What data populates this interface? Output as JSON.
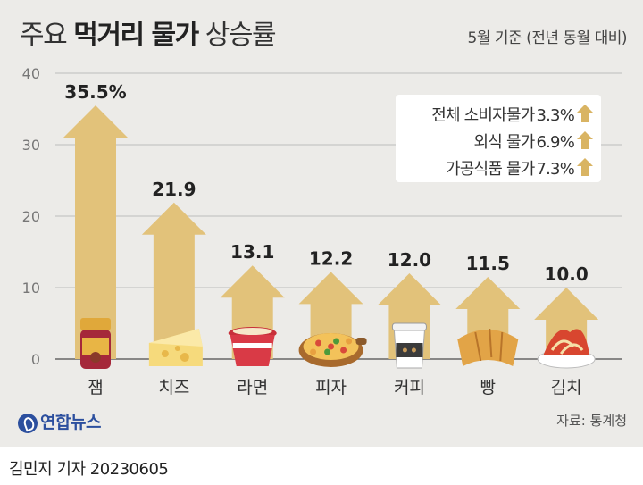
{
  "title": {
    "normal": "주요",
    "bold": "먹거리 물가",
    "suffix": "상승률"
  },
  "subtitle": "5월 기준 (전년 동월 대비)",
  "legend": [
    {
      "label": "전체 소비자물가",
      "value": "3.3%"
    },
    {
      "label": "외식 물가",
      "value": "6.9%"
    },
    {
      "label": "가공식품 물가",
      "value": "7.3%"
    }
  ],
  "source": "자료: 통계청",
  "logo": "연합뉴스",
  "credit": "김민지 기자  20230605",
  "colors": {
    "arrow": "#e2c27a",
    "panel": "#ecebe8",
    "legend_arrow": "#d9b463",
    "axis": "#888888"
  },
  "chart_data": {
    "type": "bar",
    "categories": [
      "잼",
      "치즈",
      "라면",
      "피자",
      "커피",
      "빵",
      "김치"
    ],
    "values": [
      35.5,
      21.9,
      13.1,
      12.2,
      12.0,
      11.5,
      10.0
    ],
    "value_labels": [
      "35.5%",
      "21.9",
      "13.1",
      "12.2",
      "12.0",
      "11.5",
      "10.0"
    ],
    "icons": [
      "jam-jar-icon",
      "cheese-icon",
      "ramen-cup-icon",
      "pizza-icon",
      "coffee-cup-icon",
      "bread-icon",
      "kimchi-icon"
    ],
    "yticks": [
      0,
      10,
      20,
      30,
      40
    ],
    "ylim": [
      0,
      40
    ],
    "unit": "%"
  }
}
